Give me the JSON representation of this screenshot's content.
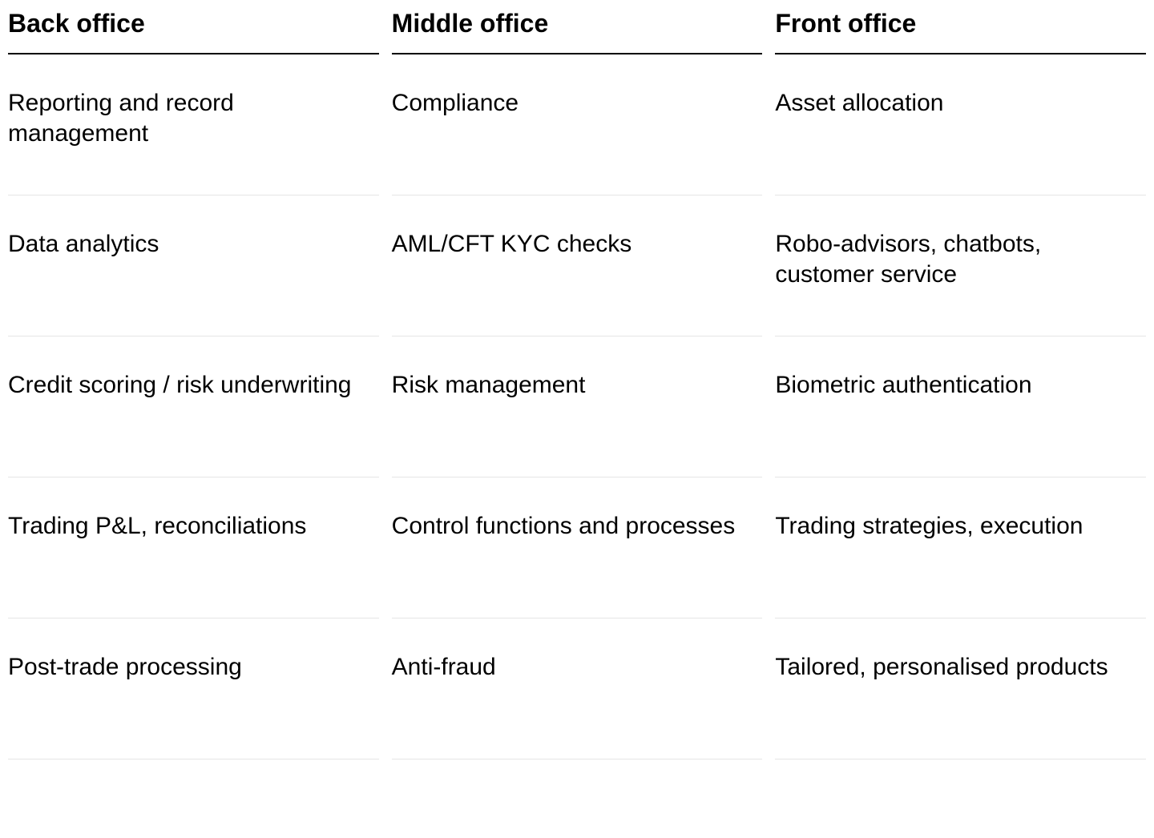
{
  "table": {
    "type": "table",
    "columns": [
      {
        "header": "Back office"
      },
      {
        "header": "Middle office"
      },
      {
        "header": "Front office"
      }
    ],
    "rows": [
      [
        "Reporting and record management",
        "Compliance",
        "Asset allocation"
      ],
      [
        "Data analytics",
        "AML/CFT KYC checks",
        "Robo-advisors, chatbots, customer service"
      ],
      [
        "Credit scoring / risk underwriting",
        "Risk management",
        "Biometric authentication"
      ],
      [
        "Trading P&L, reconciliations",
        "Control functions and processes",
        "Trading strategies, execution"
      ],
      [
        "Post-trade processing",
        "Anti-fraud",
        "Tailored, personalised products"
      ]
    ],
    "styling": {
      "header_font_size": 32,
      "header_font_weight": 700,
      "body_font_size": 30,
      "body_font_weight": 400,
      "text_color": "#000000",
      "background_color": "#ffffff",
      "header_border_color": "#000000",
      "header_border_width": 2,
      "row_border_color": "#e5e5e5",
      "row_border_width": 1,
      "column_gap": 16,
      "row_min_height": 176
    }
  }
}
